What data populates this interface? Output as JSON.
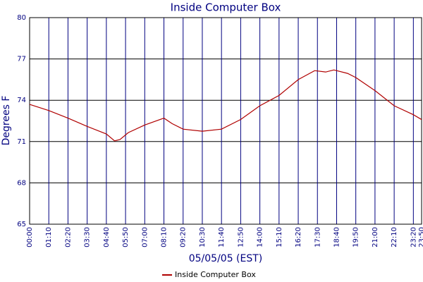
{
  "chart_data": {
    "type": "line",
    "title": "Inside Computer Box",
    "x_label": "05/05/05 (EST)",
    "y_label": "Degrees F",
    "x": [
      0,
      70,
      140,
      210,
      280,
      310,
      330,
      360,
      420,
      490,
      520,
      560,
      630,
      700,
      770,
      840,
      910,
      980,
      1040,
      1080,
      1110,
      1160,
      1190,
      1260,
      1330,
      1400,
      1430
    ],
    "series": [
      {
        "name": "Inside Computer Box",
        "color": "#b00000",
        "values": [
          73.7,
          73.25,
          72.7,
          72.1,
          71.55,
          71.05,
          71.15,
          71.65,
          72.2,
          72.7,
          72.3,
          71.9,
          71.75,
          71.9,
          72.6,
          73.6,
          74.35,
          75.5,
          76.15,
          76.05,
          76.2,
          75.95,
          75.65,
          74.7,
          73.6,
          72.95,
          72.6
        ]
      }
    ],
    "xlim": [
      0,
      1430
    ],
    "xticks": [
      {
        "value": 0,
        "label": "00:00"
      },
      {
        "value": 70,
        "label": "01:10"
      },
      {
        "value": 140,
        "label": "02:20"
      },
      {
        "value": 210,
        "label": "03:30"
      },
      {
        "value": 280,
        "label": "04:40"
      },
      {
        "value": 350,
        "label": "05:50"
      },
      {
        "value": 420,
        "label": "07:00"
      },
      {
        "value": 490,
        "label": "08:10"
      },
      {
        "value": 560,
        "label": "09:20"
      },
      {
        "value": 630,
        "label": "10:30"
      },
      {
        "value": 700,
        "label": "11:40"
      },
      {
        "value": 770,
        "label": "12:50"
      },
      {
        "value": 840,
        "label": "14:00"
      },
      {
        "value": 910,
        "label": "15:10"
      },
      {
        "value": 980,
        "label": "16:20"
      },
      {
        "value": 1050,
        "label": "17:30"
      },
      {
        "value": 1120,
        "label": "18:40"
      },
      {
        "value": 1190,
        "label": "19:50"
      },
      {
        "value": 1260,
        "label": "21:00"
      },
      {
        "value": 1330,
        "label": "22:10"
      },
      {
        "value": 1400,
        "label": "23:20"
      },
      {
        "value": 1430,
        "label": "23:50"
      }
    ],
    "ylim": [
      65,
      80
    ],
    "yticks": [
      65,
      68,
      71,
      74,
      77,
      80
    ],
    "grid": true,
    "legend": "bottom"
  }
}
